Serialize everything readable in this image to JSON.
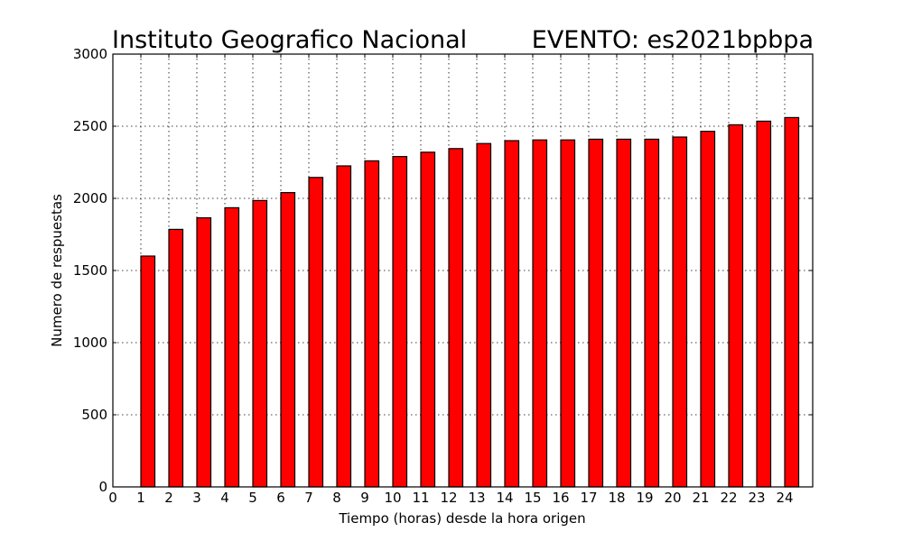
{
  "chart_data": {
    "type": "bar",
    "title_left": "Instituto Geografico Nacional",
    "title_right": "EVENTO: es2021bpbpa",
    "xlabel": "Tiempo (horas) desde la hora origen",
    "ylabel": "Numero de respuestas",
    "categories": [
      "1",
      "2",
      "3",
      "4",
      "5",
      "6",
      "7",
      "8",
      "9",
      "10",
      "11",
      "12",
      "13",
      "14",
      "15",
      "16",
      "17",
      "18",
      "19",
      "20",
      "21",
      "22",
      "23",
      "24"
    ],
    "x": [
      1,
      2,
      3,
      4,
      5,
      6,
      7,
      8,
      9,
      10,
      11,
      12,
      13,
      14,
      15,
      16,
      17,
      18,
      19,
      20,
      21,
      22,
      23,
      24
    ],
    "values": [
      1600,
      1785,
      1865,
      1935,
      1985,
      2040,
      2145,
      2225,
      2260,
      2290,
      2320,
      2345,
      2380,
      2400,
      2405,
      2405,
      2410,
      2410,
      2410,
      2425,
      2465,
      2510,
      2535,
      2560
    ],
    "xlim": [
      0,
      25
    ],
    "ylim": [
      0,
      3000
    ],
    "xticks": [
      "0",
      "1",
      "2",
      "3",
      "4",
      "5",
      "6",
      "7",
      "8",
      "9",
      "10",
      "11",
      "12",
      "13",
      "14",
      "15",
      "16",
      "17",
      "18",
      "19",
      "20",
      "21",
      "22",
      "23",
      "24"
    ],
    "yticks": [
      "0",
      "500",
      "1000",
      "1500",
      "2000",
      "2500",
      "3000"
    ],
    "bar_color": "#ff0000",
    "grid": true
  }
}
